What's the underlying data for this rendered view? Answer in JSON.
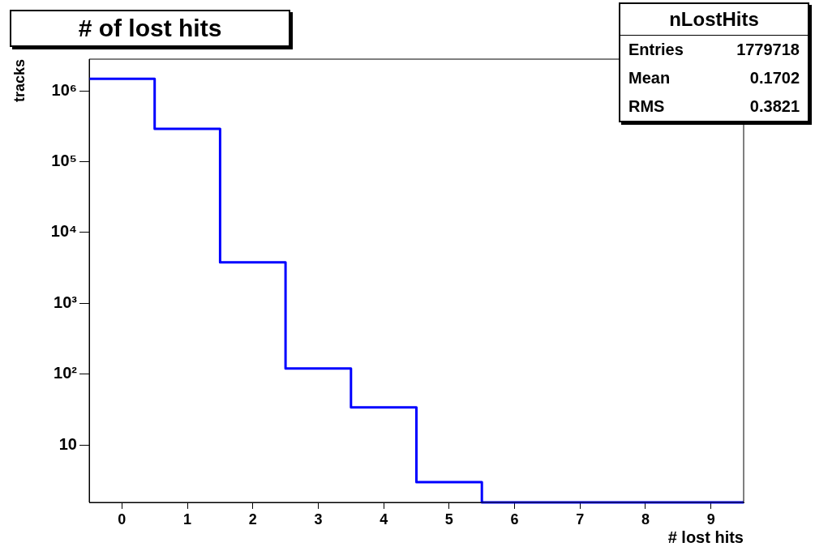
{
  "chart_data": {
    "type": "histogram",
    "title": "# of lost hits",
    "xlabel": "# lost hits",
    "ylabel": "tracks",
    "bins": [
      -0.5,
      0.5,
      1.5,
      2.5,
      3.5,
      4.5,
      5.5,
      6.5,
      7.5,
      8.5,
      9.5
    ],
    "values": [
      1480000,
      290000,
      3800,
      120,
      34,
      3,
      null,
      null,
      null,
      null
    ],
    "color": "#0000ff",
    "log": "y",
    "grid": false,
    "legend": false,
    "xlim": [
      -0.5,
      9.5
    ],
    "xticks": [
      0,
      1,
      2,
      3,
      4,
      5,
      6,
      7,
      8,
      9
    ],
    "ylim": [
      1.55,
      2800000
    ],
    "yticks": [
      10,
      {
        "value": 100,
        "label": "10²"
      },
      {
        "value": 1000,
        "label": "10³"
      },
      {
        "value": 10000,
        "label": "10⁴"
      },
      {
        "value": 100000,
        "label": "10⁵"
      },
      {
        "value": 1000000,
        "label": "10⁶"
      }
    ],
    "annotations": [
      "nLostHits",
      "Entries",
      "1779718",
      "Mean",
      "0.1702",
      "RMS",
      "0.3821"
    ]
  }
}
